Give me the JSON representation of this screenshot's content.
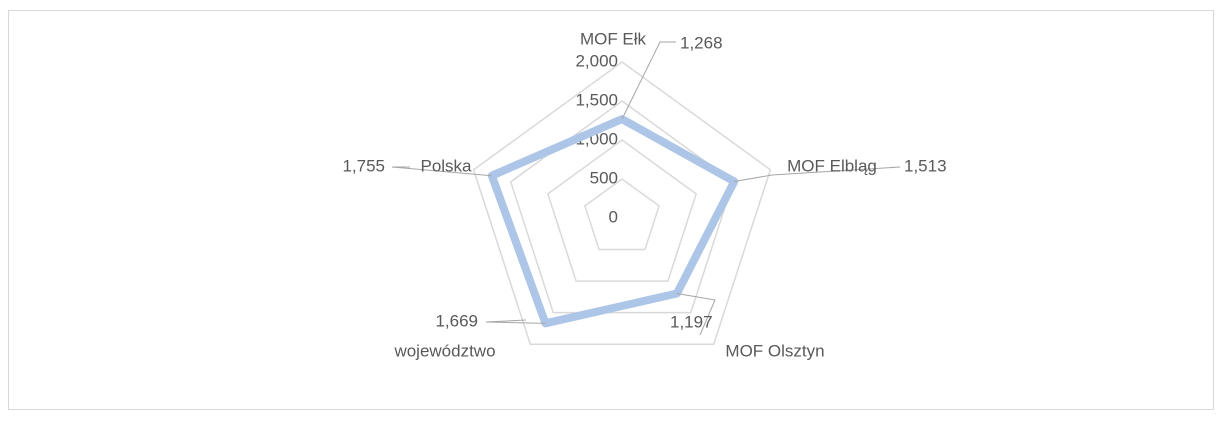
{
  "chart_data": {
    "type": "radar",
    "categories": [
      "MOF Ełk",
      "MOF Elbląg",
      "MOF Olsztyn",
      "województwo",
      "Polska"
    ],
    "values": [
      1268,
      1513,
      1197,
      1669,
      1755
    ],
    "value_labels": [
      "1,268",
      "1,513",
      "1,197",
      "1,669",
      "1,755"
    ],
    "color": "#adc6e8",
    "ylim": [
      0,
      2000
    ],
    "yticks": [
      0,
      500,
      {
        "value": 1000,
        "label": "1,000"
      },
      {
        "value": 1500,
        "label": "1,500"
      },
      {
        "value": 2000,
        "label": "2,000"
      }
    ],
    "grid": true
  }
}
